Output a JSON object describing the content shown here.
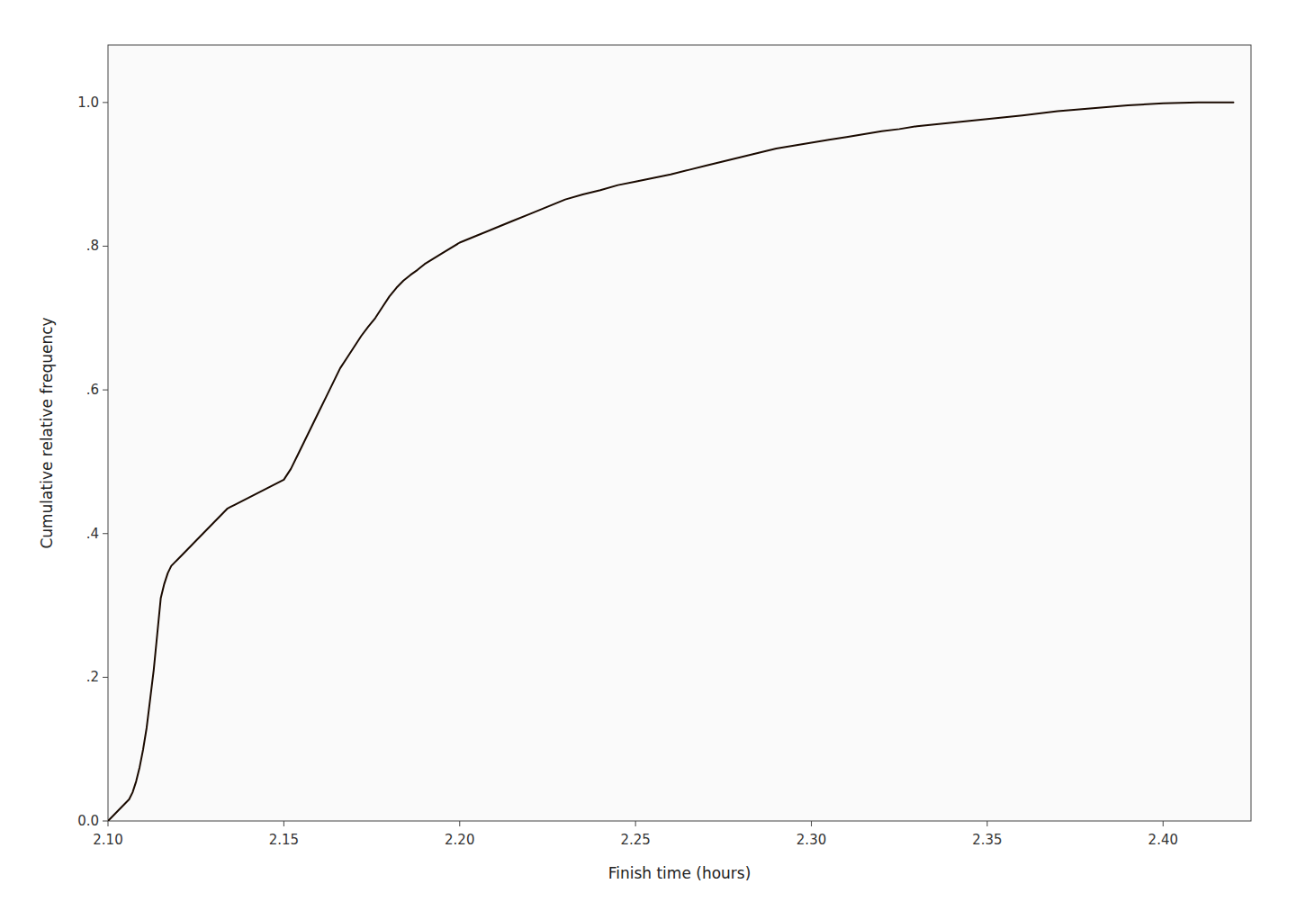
{
  "chart_data": {
    "type": "line",
    "xlabel": "Finish time (hours)",
    "ylabel": "Cumulative relative frequency",
    "color": "#1a0a00",
    "grid": false,
    "xlim": [
      2.1,
      2.425
    ],
    "ylim": [
      0.0,
      1.08
    ],
    "xticks": [
      {
        "value": 2.1,
        "label": "2.10"
      },
      {
        "value": 2.15,
        "label": "2.15"
      },
      {
        "value": 2.2,
        "label": "2.20"
      },
      {
        "value": 2.25,
        "label": "2.25"
      },
      {
        "value": 2.3,
        "label": "2.30"
      },
      {
        "value": 2.35,
        "label": "2.35"
      },
      {
        "value": 2.4,
        "label": "2.40"
      }
    ],
    "yticks": [
      {
        "value": 0.0,
        "label": "0.0"
      },
      {
        "value": 0.2,
        "label": ".2"
      },
      {
        "value": 0.4,
        "label": ".4"
      },
      {
        "value": 0.6,
        "label": ".6"
      },
      {
        "value": 0.8,
        "label": ".8"
      },
      {
        "value": 1.0,
        "label": "1.0"
      }
    ],
    "x": [
      2.1,
      2.101,
      2.102,
      2.103,
      2.104,
      2.105,
      2.106,
      2.107,
      2.108,
      2.109,
      2.11,
      2.111,
      2.112,
      2.113,
      2.114,
      2.115,
      2.116,
      2.117,
      2.118,
      2.119,
      2.12,
      2.121,
      2.122,
      2.123,
      2.124,
      2.125,
      2.126,
      2.127,
      2.128,
      2.13,
      2.132,
      2.134,
      2.136,
      2.138,
      2.14,
      2.142,
      2.144,
      2.146,
      2.148,
      2.15,
      2.152,
      2.154,
      2.156,
      2.158,
      2.16,
      2.162,
      2.164,
      2.166,
      2.168,
      2.17,
      2.172,
      2.174,
      2.176,
      2.178,
      2.18,
      2.182,
      2.184,
      2.186,
      2.188,
      2.19,
      2.195,
      2.2,
      2.205,
      2.21,
      2.215,
      2.22,
      2.225,
      2.23,
      2.235,
      2.24,
      2.245,
      2.25,
      2.255,
      2.26,
      2.265,
      2.27,
      2.275,
      2.28,
      2.285,
      2.29,
      2.295,
      2.3,
      2.305,
      2.31,
      2.315,
      2.32,
      2.325,
      2.33,
      2.34,
      2.35,
      2.36,
      2.37,
      2.38,
      2.39,
      2.4,
      2.41,
      2.42
    ],
    "values": [
      0.0,
      0.005,
      0.01,
      0.015,
      0.02,
      0.025,
      0.03,
      0.04,
      0.055,
      0.075,
      0.1,
      0.13,
      0.17,
      0.21,
      0.26,
      0.31,
      0.33,
      0.345,
      0.355,
      0.36,
      0.365,
      0.37,
      0.375,
      0.38,
      0.385,
      0.39,
      0.395,
      0.4,
      0.405,
      0.415,
      0.425,
      0.435,
      0.44,
      0.445,
      0.45,
      0.455,
      0.46,
      0.465,
      0.47,
      0.475,
      0.49,
      0.51,
      0.53,
      0.55,
      0.57,
      0.59,
      0.61,
      0.63,
      0.645,
      0.66,
      0.675,
      0.688,
      0.7,
      0.715,
      0.73,
      0.742,
      0.752,
      0.76,
      0.767,
      0.775,
      0.79,
      0.805,
      0.815,
      0.825,
      0.835,
      0.845,
      0.855,
      0.865,
      0.872,
      0.878,
      0.885,
      0.89,
      0.895,
      0.9,
      0.906,
      0.912,
      0.918,
      0.924,
      0.93,
      0.936,
      0.94,
      0.944,
      0.948,
      0.952,
      0.956,
      0.96,
      0.963,
      0.967,
      0.972,
      0.977,
      0.982,
      0.988,
      0.992,
      0.996,
      0.999,
      1.0,
      1.0
    ]
  }
}
